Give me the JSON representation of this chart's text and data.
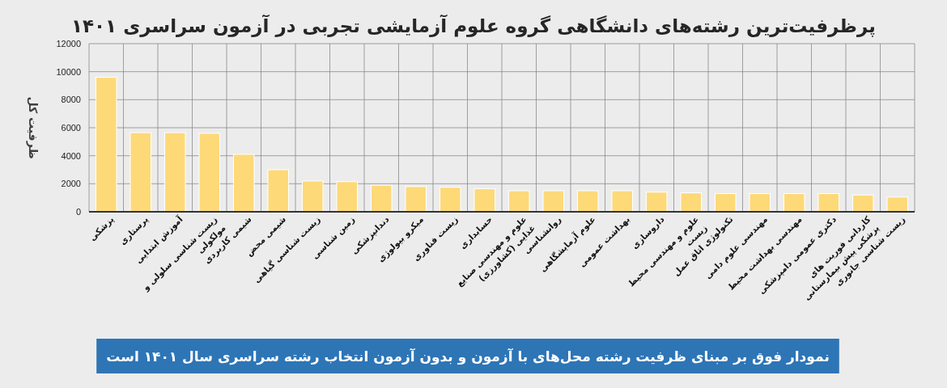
{
  "chart_data": {
    "type": "bar",
    "title": "پرظرفیت‌ترین رشته‌های دانشگاهی گروه علوم آزمایشی تجربی در آزمون سراسری ۱۴۰۱",
    "ylabel": "ظرفیت کل",
    "categories": [
      "پزشکی",
      "پرستاری",
      "آموزش ابتدایی",
      "زیست شناسی سلولی و مولکولی",
      "شیمی کاربردی",
      "شیمی محض",
      "زیست شناسی گیاهی",
      "زمین شناسی",
      "دندانپزشکی",
      "میکرو بیولوژی",
      "زیست فناوری",
      "حسابداری",
      "علوم و مهندسی صنایع غذایی (کشاورزی)",
      "روانشناسی",
      "علوم آزمایشگاهی",
      "بهداشت عمومی",
      "داروسازی",
      "علوم و مهندسی محیط زیست",
      "تکنولوژی اتاق عمل",
      "مهندسی علوم دامی",
      "مهندسی بهداشت محیط",
      "دکتری عمومی دامپزشکی",
      "کاردانی فوریت های پزشکی پیش بیمارستانی",
      "زیست شناسی جانوری"
    ],
    "values": [
      9600,
      5650,
      5650,
      5600,
      4100,
      3000,
      2200,
      2150,
      1900,
      1800,
      1750,
      1650,
      1500,
      1500,
      1500,
      1500,
      1400,
      1350,
      1300,
      1300,
      1300,
      1300,
      1200,
      1050
    ],
    "color": "#fdd978",
    "ylim": [
      0,
      12000
    ],
    "yticks": [
      0,
      2000,
      4000,
      6000,
      8000,
      10000,
      12000
    ],
    "grid": true,
    "annotations": [
      "نمودار فوق بر مبنای ظرفیت رشته محل‌های با آزمون و بدون آزمون انتخاب رشته سراسری سال ۱۴۰۱ است"
    ]
  }
}
